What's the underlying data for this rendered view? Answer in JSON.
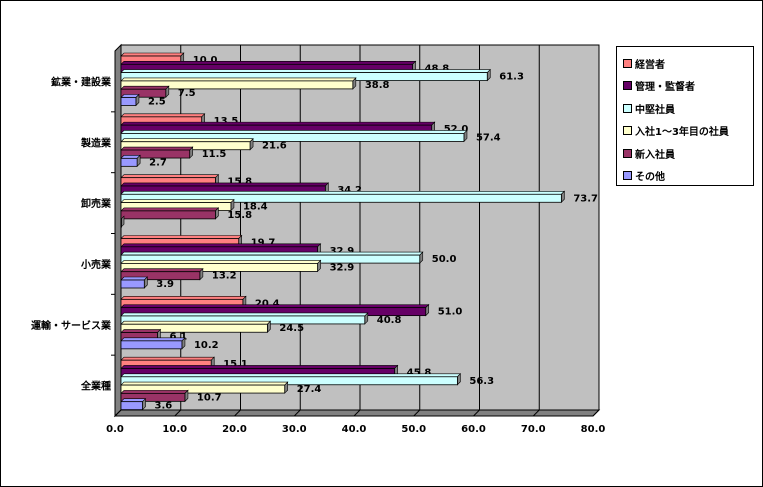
{
  "chart_data": {
    "type": "bar",
    "orientation": "horizontal",
    "categories": [
      "鉱業・建設業",
      "製造業",
      "卸売業",
      "小売業",
      "運輸・サービス業",
      "全業種"
    ],
    "series": [
      {
        "name": "経営者",
        "color": "#FF8080",
        "values": [
          10.0,
          13.5,
          15.8,
          19.7,
          20.4,
          15.1
        ]
      },
      {
        "name": "管理・監督者",
        "color": "#660066",
        "values": [
          48.8,
          52.0,
          34.2,
          32.9,
          51.0,
          45.8
        ]
      },
      {
        "name": "中堅社員",
        "color": "#CCFFFF",
        "values": [
          61.3,
          57.4,
          73.7,
          50.0,
          40.8,
          56.3
        ]
      },
      {
        "name": "入社1～3年目の社員",
        "color": "#FFFFCC",
        "values": [
          38.8,
          21.6,
          18.4,
          32.9,
          24.5,
          27.4
        ]
      },
      {
        "name": "新入社員",
        "color": "#993366",
        "values": [
          7.5,
          11.5,
          15.8,
          13.2,
          6.1,
          10.7
        ]
      },
      {
        "name": "その他",
        "color": "#9999FF",
        "values": [
          2.5,
          2.7,
          0,
          3.9,
          10.2,
          3.6
        ]
      }
    ],
    "value_labels": [
      [
        "10.0",
        "48.8",
        "61.3",
        "38.8",
        "7.5",
        "2.5"
      ],
      [
        "13.5",
        "52.0",
        "57.4",
        "21.6",
        "11.5",
        "2.7"
      ],
      [
        "15.8",
        "34.2",
        "73.7",
        "18.4",
        "15.8",
        ""
      ],
      [
        "19.7",
        "32.9",
        "50.0",
        "32.9",
        "13.2",
        "3.9"
      ],
      [
        "20.4",
        "51.0",
        "40.8",
        "24.5",
        "6.1",
        "10.2"
      ],
      [
        "15.1",
        "45.8",
        "56.3",
        "27.4",
        "10.7",
        "3.6"
      ]
    ],
    "xlim": [
      0,
      80
    ],
    "xticks": [
      "0.0",
      "10.0",
      "20.0",
      "30.0",
      "40.0",
      "50.0",
      "60.0",
      "70.0",
      "80.0"
    ],
    "grid": true,
    "legend": "right",
    "title": "",
    "xlabel": "",
    "ylabel": ""
  }
}
